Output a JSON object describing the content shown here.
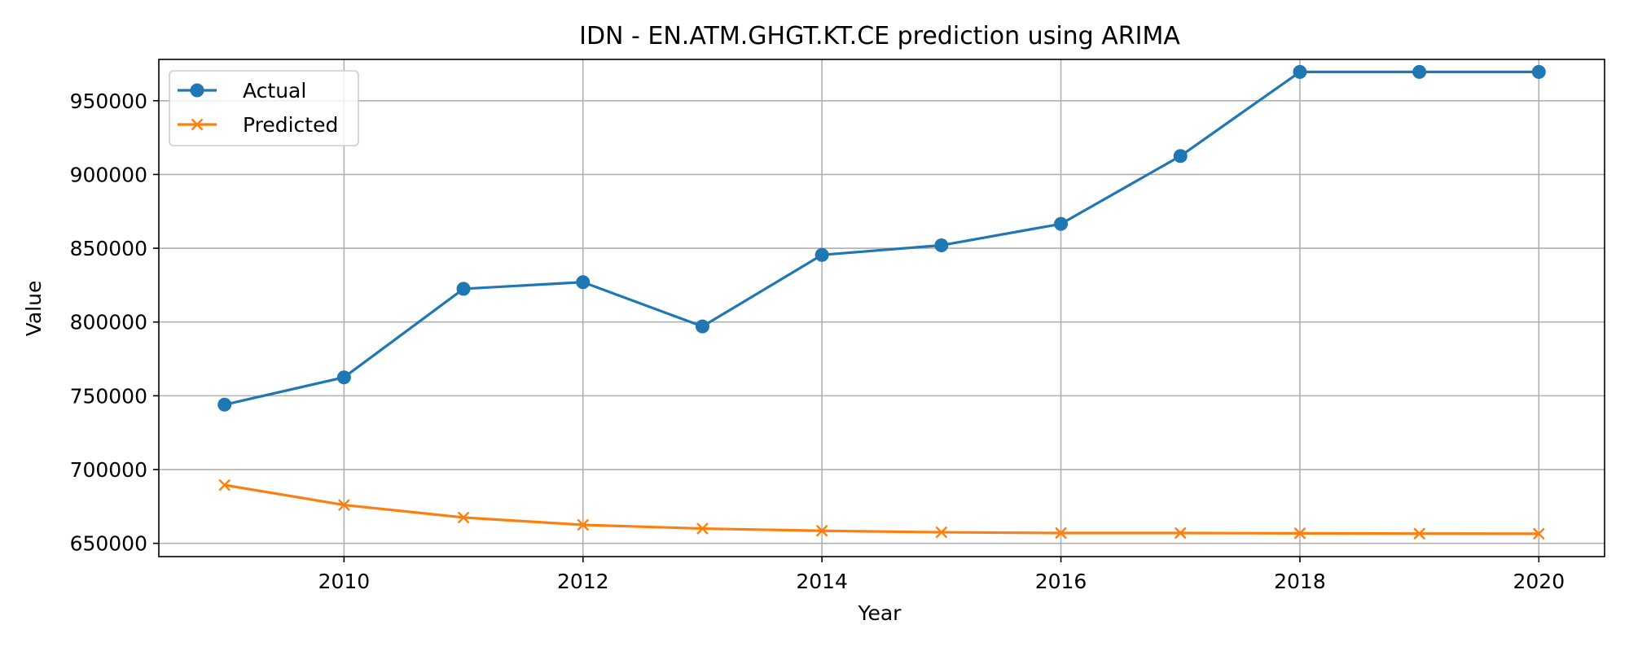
{
  "chart_data": {
    "type": "line",
    "title": "IDN - EN.ATM.GHGT.KT.CE prediction using ARIMA",
    "xlabel": "Year",
    "ylabel": "Value",
    "x": [
      2009,
      2010,
      2011,
      2012,
      2013,
      2014,
      2015,
      2016,
      2017,
      2018,
      2019,
      2020
    ],
    "xlim": [
      2008.45,
      2020.55
    ],
    "ylim": [
      641000,
      978000
    ],
    "xticks": [
      2010,
      2012,
      2014,
      2016,
      2018,
      2020
    ],
    "yticks": [
      650000,
      700000,
      750000,
      800000,
      850000,
      900000,
      950000
    ],
    "xtick_labels": [
      "2010",
      "2012",
      "2014",
      "2016",
      "2018",
      "2020"
    ],
    "ytick_labels": [
      "650000",
      "700000",
      "750000",
      "800000",
      "850000",
      "900000",
      "950000"
    ],
    "grid": true,
    "legend_position": "upper-left",
    "series": [
      {
        "name": "Actual",
        "marker": "circle",
        "color": "#1f77b4",
        "values": [
          744000,
          762500,
          822500,
          827000,
          797000,
          845500,
          852000,
          866500,
          912500,
          969500,
          969500,
          969500
        ]
      },
      {
        "name": "Predicted",
        "marker": "x",
        "color": "#ff7f0e",
        "values": [
          689500,
          676000,
          667500,
          662500,
          660000,
          658500,
          657500,
          657000,
          657000,
          656800,
          656600,
          656500
        ]
      }
    ]
  }
}
